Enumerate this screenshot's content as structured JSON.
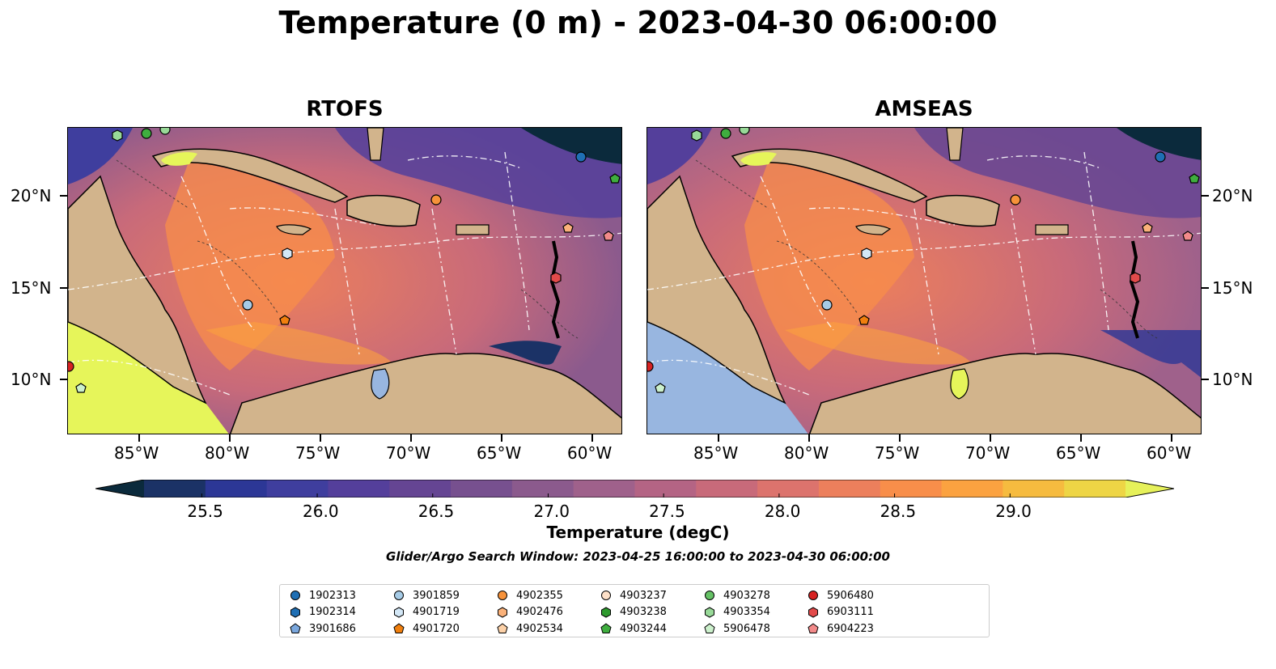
{
  "title": "Temperature (0 m) - 2023-04-30 06:00:00",
  "panels": [
    {
      "title": "RTOFS"
    },
    {
      "title": "AMSEAS"
    }
  ],
  "lat_ticks": [
    "20°N",
    "15°N",
    "10°N"
  ],
  "lon_ticks": [
    "85°W",
    "80°W",
    "75°W",
    "70°W",
    "65°W",
    "60°W"
  ],
  "colorbar": {
    "label": "Temperature (degC)",
    "ticks": [
      "25.5",
      "26.0",
      "26.5",
      "27.0",
      "27.5",
      "28.0",
      "28.5",
      "29.0"
    ],
    "range": [
      25.25,
      29.5
    ],
    "colors": [
      "#0b2a3c",
      "#1b3266",
      "#2c3796",
      "#3f3e9e",
      "#543f9b",
      "#654593",
      "#77508f",
      "#8b5a8d",
      "#9f618b",
      "#b46484",
      "#c86a7a",
      "#dc736d",
      "#ec7f5c",
      "#f88e4a",
      "#fba240",
      "#f6bb3f",
      "#eed545",
      "#e6f15a"
    ]
  },
  "search_window": "Glider/Argo Search Window: 2023-04-25 16:00:00 to 2023-04-30 06:00:00",
  "legend": [
    {
      "id": "1902313",
      "marker": "circle",
      "color": "#1f6fb4"
    },
    {
      "id": "1902314",
      "marker": "hexagon",
      "color": "#1f6fb4"
    },
    {
      "id": "3901686",
      "marker": "pentagon",
      "color": "#7aa7dd"
    },
    {
      "id": "3901859",
      "marker": "circle",
      "color": "#a6cbe6"
    },
    {
      "id": "4901719",
      "marker": "hexagon",
      "color": "#d3e7f6"
    },
    {
      "id": "4901720",
      "marker": "pentagon",
      "color": "#f07f0e"
    },
    {
      "id": "4902355",
      "marker": "circle",
      "color": "#f6923a"
    },
    {
      "id": "4902476",
      "marker": "hexagon",
      "color": "#fbb27a"
    },
    {
      "id": "4902534",
      "marker": "pentagon",
      "color": "#fcd1a8"
    },
    {
      "id": "4903237",
      "marker": "circle",
      "color": "#fde0c8"
    },
    {
      "id": "4903238",
      "marker": "hexagon",
      "color": "#2e9a2e"
    },
    {
      "id": "4903244",
      "marker": "pentagon",
      "color": "#3fae3f"
    },
    {
      "id": "4903278",
      "marker": "circle",
      "color": "#66c266"
    },
    {
      "id": "4903354",
      "marker": "hexagon",
      "color": "#98d998"
    },
    {
      "id": "5906478",
      "marker": "pentagon",
      "color": "#ccf0cc"
    },
    {
      "id": "5906480",
      "marker": "circle",
      "color": "#d62222"
    },
    {
      "id": "6903111",
      "marker": "hexagon",
      "color": "#e24a4a"
    },
    {
      "id": "6904223",
      "marker": "pentagon",
      "color": "#f28a8a"
    }
  ],
  "colors": {
    "land": "#d2b48c",
    "pacific_rtofs": "#e6f55a",
    "pacific_amseas": "#98b6e0",
    "contour": "#ffffff"
  }
}
